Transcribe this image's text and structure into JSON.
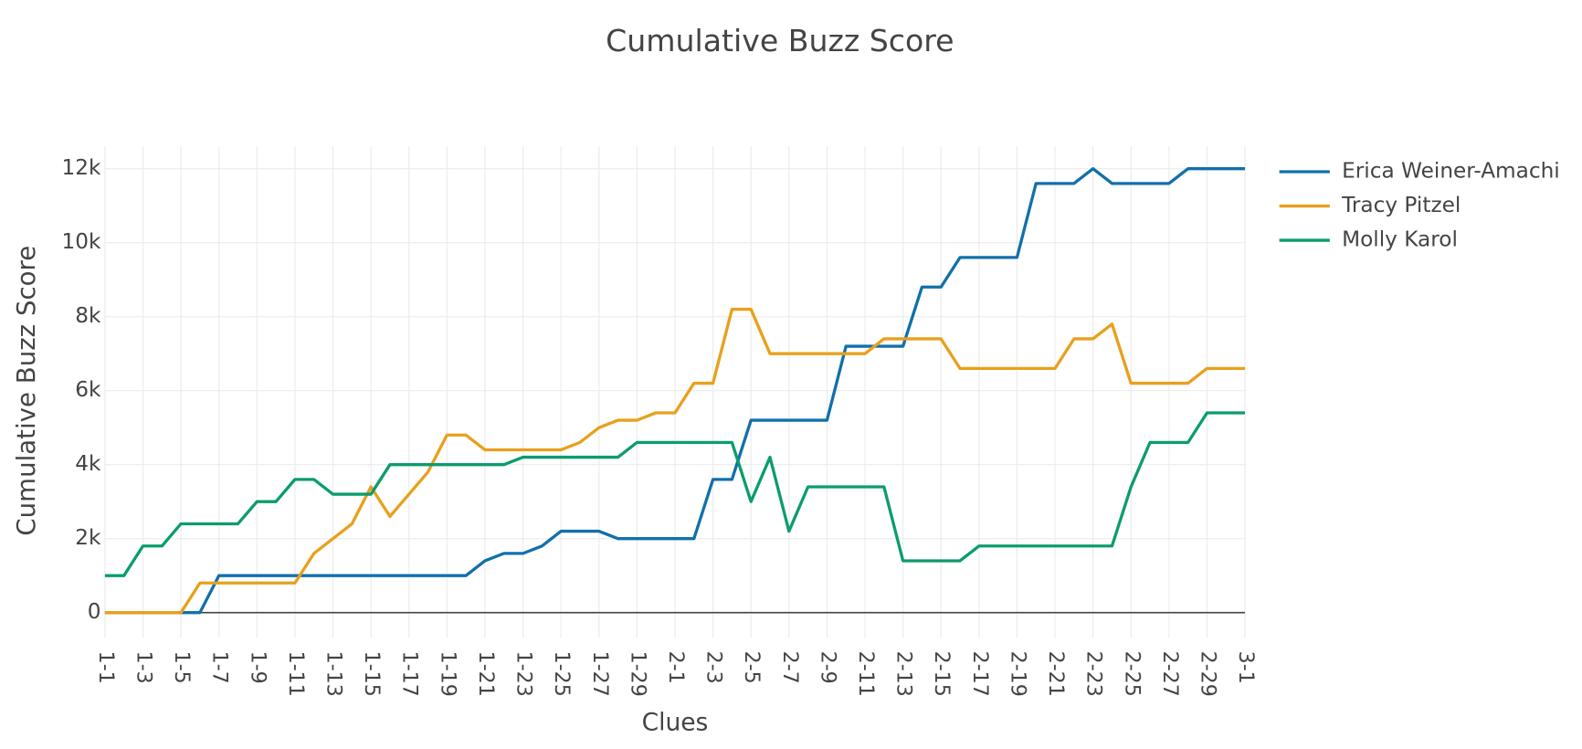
{
  "chart_data": {
    "type": "line",
    "title": "Cumulative Buzz Score",
    "x_label": "Clues",
    "y_label": "Cumulative Buzz Score",
    "categories": [
      "1-1",
      null,
      "1-3",
      null,
      "1-5",
      null,
      "1-7",
      null,
      "1-9",
      null,
      "1-11",
      null,
      "1-13",
      null,
      "1-15",
      null,
      "1-17",
      null,
      "1-19",
      null,
      "1-21",
      null,
      "1-23",
      null,
      "1-25",
      null,
      "1-27",
      null,
      "1-29",
      null,
      "2-1",
      null,
      "2-3",
      null,
      "2-5",
      null,
      "2-7",
      null,
      "2-9",
      null,
      "2-11",
      null,
      "2-13",
      null,
      "2-15",
      null,
      "2-17",
      null,
      "2-19",
      null,
      "2-21",
      null,
      "2-23",
      null,
      "2-25",
      null,
      "2-27",
      null,
      "2-29",
      null,
      "3-1"
    ],
    "series": [
      {
        "name": "Erica Weiner-Amachi",
        "color": "#1170aa",
        "values": [
          0,
          0,
          0,
          0,
          0,
          0,
          1000,
          1000,
          1000,
          1000,
          1000,
          1000,
          1000,
          1000,
          1000,
          1000,
          1000,
          1000,
          1000,
          1000,
          1400,
          1600,
          1600,
          1800,
          2200,
          2200,
          2200,
          2000,
          2000,
          2000,
          2000,
          2000,
          3600,
          3600,
          5200,
          5200,
          5200,
          5200,
          5200,
          7200,
          7200,
          7200,
          7200,
          8800,
          8800,
          9600,
          9600,
          9600,
          9600,
          11600,
          11600,
          11600,
          12000,
          11600,
          11600,
          11600,
          11600,
          12000,
          12000,
          12000,
          12000
        ]
      },
      {
        "name": "Tracy Pitzel",
        "color": "#e8a01c",
        "values": [
          0,
          0,
          0,
          0,
          0,
          800,
          800,
          800,
          800,
          800,
          800,
          1600,
          2000,
          2400,
          3400,
          2600,
          3200,
          3800,
          4800,
          4800,
          4400,
          4400,
          4400,
          4400,
          4400,
          4600,
          5000,
          5200,
          5200,
          5400,
          5400,
          6200,
          6200,
          8200,
          8200,
          7000,
          7000,
          7000,
          7000,
          7000,
          7000,
          7400,
          7400,
          7400,
          7400,
          6600,
          6600,
          6600,
          6600,
          6600,
          6600,
          7400,
          7400,
          7800,
          6200,
          6200,
          6200,
          6200,
          6600,
          6600,
          6600
        ]
      },
      {
        "name": "Molly Karol",
        "color": "#0b9c6f",
        "values": [
          1000,
          1000,
          1800,
          1800,
          2400,
          2400,
          2400,
          2400,
          3000,
          3000,
          3600,
          3600,
          3200,
          3200,
          3200,
          4000,
          4000,
          4000,
          4000,
          4000,
          4000,
          4000,
          4200,
          4200,
          4200,
          4200,
          4200,
          4200,
          4600,
          4600,
          4600,
          4600,
          4600,
          4600,
          3000,
          4200,
          2200,
          3400,
          3400,
          3400,
          3400,
          3400,
          1400,
          1400,
          1400,
          1400,
          1800,
          1800,
          1800,
          1800,
          1800,
          1800,
          1800,
          1800,
          3400,
          4600,
          4600,
          4600,
          5400,
          5400,
          5400
        ]
      }
    ],
    "ylim": [
      -682,
      12600
    ],
    "yticks": [
      {
        "value": 0,
        "label": "0"
      },
      {
        "value": 2000,
        "label": "2k"
      },
      {
        "value": 4000,
        "label": "4k"
      },
      {
        "value": 6000,
        "label": "6k"
      },
      {
        "value": 8000,
        "label": "8k"
      },
      {
        "value": 10000,
        "label": "10k"
      },
      {
        "value": 12000,
        "label": "12k"
      }
    ],
    "grid": true,
    "legend": "right"
  }
}
